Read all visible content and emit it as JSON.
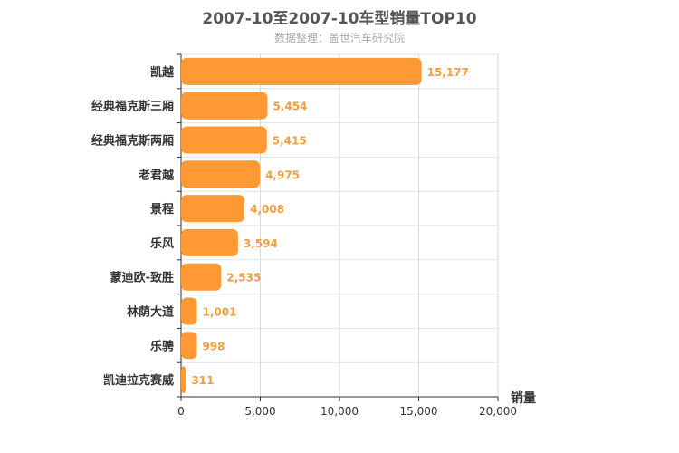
{
  "chart_data": {
    "type": "bar",
    "orientation": "horizontal",
    "title": "2007-10至2007-10车型销量TOP10",
    "subtitle": "数据整理：盖世汽车研究院",
    "categories": [
      "凯越",
      "经典福克斯三厢",
      "经典福克斯两厢",
      "老君越",
      "景程",
      "乐风",
      "蒙迪欧-致胜",
      "林荫大道",
      "乐骋",
      "凯迪拉克赛威"
    ],
    "values": [
      15177,
      5454,
      5415,
      4975,
      4008,
      3594,
      2535,
      1001,
      998,
      311
    ],
    "value_labels": [
      "15,177",
      "5,454",
      "5,415",
      "4,975",
      "4,008",
      "3,594",
      "2,535",
      "1,001",
      "998",
      "311"
    ],
    "xlabel": "销量",
    "xlim": [
      0,
      20000
    ],
    "ticks": [
      "0",
      "5,000",
      "10,000",
      "15,000",
      "20,000"
    ],
    "tick_values": [
      0,
      5000,
      10000,
      15000,
      20000
    ],
    "bar_color": "#ff9933",
    "grid": true
  }
}
